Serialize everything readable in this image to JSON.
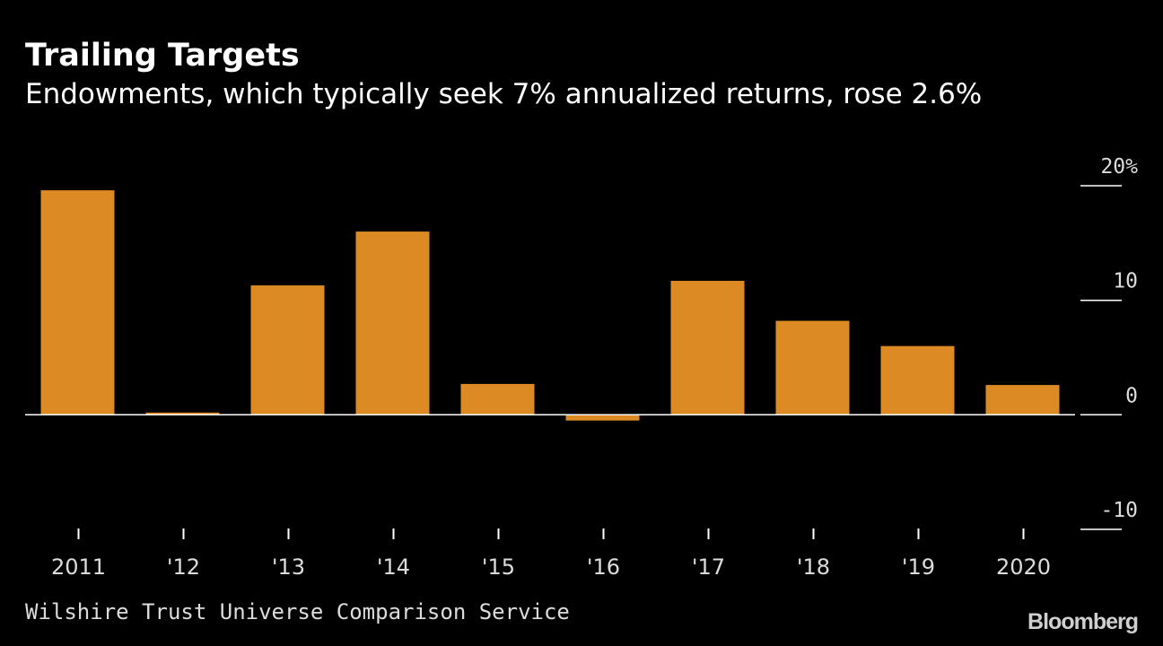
{
  "header": {
    "title": "Trailing Targets",
    "subtitle": "Endowments, which typically seek 7% annualized returns, rose 2.6%"
  },
  "footer": {
    "source": "Wilshire Trust Universe Comparison Service",
    "brand": "Bloomberg"
  },
  "colors": {
    "bar": "#dc8a24",
    "background": "#000000",
    "text": "#ffffff",
    "muted_text": "#dcdcdc"
  },
  "chart_data": {
    "type": "bar",
    "title": "Trailing Targets",
    "subtitle": "Endowments, which typically seek 7% annualized returns, rose 2.6%",
    "xlabel": "",
    "ylabel": "",
    "categories": [
      "2011",
      "'12",
      "'13",
      "'14",
      "'15",
      "'16",
      "'17",
      "'18",
      "'19",
      "2020"
    ],
    "values": [
      19.6,
      0.2,
      11.3,
      16.0,
      2.7,
      -0.5,
      11.7,
      8.2,
      6.0,
      2.6
    ],
    "ylim": [
      -10,
      20
    ],
    "yticks": [
      20,
      10,
      0,
      -10
    ],
    "ytick_labels": [
      "20%",
      "10",
      "0",
      "-10"
    ],
    "axis_side": "right",
    "grid": false
  }
}
